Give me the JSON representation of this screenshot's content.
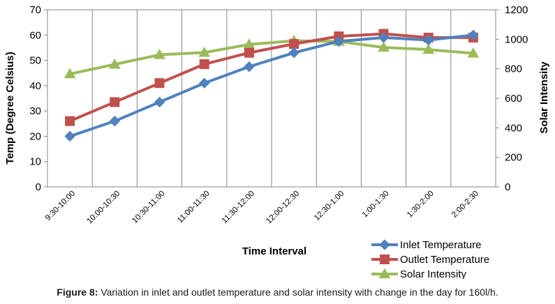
{
  "chart_data": {
    "type": "line",
    "categories": [
      "9:30-10:00",
      "10:00-10:30",
      "10:30-11:00",
      "11:00-11:30",
      "11:30-12:00",
      "12:00-12:30",
      "12:30-1:00",
      "1:00-1:30",
      "1:30-2:00",
      "2:00-2:30"
    ],
    "series": [
      {
        "name": "Inlet Temperature",
        "axis": "left",
        "color": "#4f81bd",
        "marker": "diamond",
        "values": [
          20,
          26,
          33.5,
          41,
          47.5,
          53,
          57.5,
          59,
          58,
          60
        ]
      },
      {
        "name": "Outlet Temperature",
        "axis": "left",
        "color": "#c0504d",
        "marker": "square",
        "values": [
          26,
          33.5,
          41,
          48.5,
          53,
          56.5,
          59.5,
          60.5,
          59,
          59
        ]
      },
      {
        "name": "Solar Intensity",
        "axis": "right",
        "color": "#9bbb59",
        "marker": "triangle",
        "values": [
          765,
          830,
          895,
          910,
          965,
          990,
          985,
          945,
          930,
          905
        ]
      }
    ],
    "xlabel": "Time Interval",
    "ylabel": "Temp (Degree Celsius)",
    "y2label": "Solar Intensity",
    "ylim": [
      0,
      70
    ],
    "y2lim": [
      0,
      1200
    ],
    "yticks": [
      "0",
      "10",
      "20",
      "30",
      "40",
      "50",
      "60",
      "70"
    ],
    "y2ticks": [
      "0",
      "200",
      "400",
      "600",
      "800",
      "1000",
      "1200"
    ],
    "grid": "vertical",
    "legend": "bottom-right"
  },
  "caption": {
    "label": "Figure 8:",
    "text": " Variation in inlet and outlet temperature and solar intensity with change in the day for 160l/h."
  }
}
